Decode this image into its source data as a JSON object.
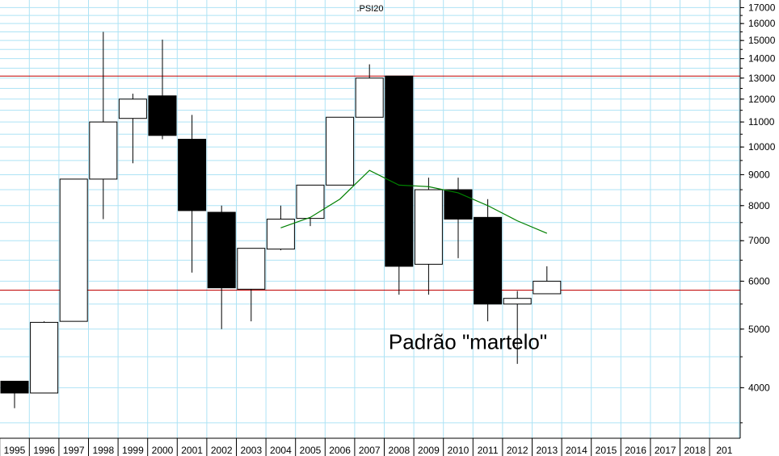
{
  "chart_data": {
    "type": "candlestick",
    "title": ".PSI20",
    "scale": "log",
    "ylim": [
      3300,
      17500
    ],
    "y_ticks": [
      4000,
      5000,
      6000,
      7000,
      8000,
      9000,
      10000,
      11000,
      12000,
      13000,
      14000,
      15000,
      16000,
      17000
    ],
    "x_labels": [
      "1995",
      "1996",
      "1997",
      "1998",
      "1999",
      "2000",
      "2001",
      "2002",
      "2003",
      "2004",
      "2005",
      "2006",
      "2007",
      "2008",
      "2009",
      "2010",
      "2011",
      "2012",
      "2013",
      "2014",
      "2015",
      "2016",
      "2017",
      "2018",
      "201"
    ],
    "grid": true,
    "candles": [
      {
        "year": "1995",
        "open": 4100,
        "close": 3920,
        "high": 4100,
        "low": 3700
      },
      {
        "year": "1996",
        "open": 3920,
        "close": 5130,
        "high": 5150,
        "low": 3920
      },
      {
        "year": "1997",
        "open": 5150,
        "close": 8850,
        "high": 8850,
        "low": 5150
      },
      {
        "year": "1998",
        "open": 8850,
        "close": 11000,
        "high": 15500,
        "low": 7600
      },
      {
        "year": "1999",
        "open": 11150,
        "close": 12000,
        "high": 12250,
        "low": 9400
      },
      {
        "year": "2000",
        "open": 12150,
        "close": 10450,
        "high": 15050,
        "low": 10300
      },
      {
        "year": "2001",
        "open": 10300,
        "close": 7850,
        "high": 11300,
        "low": 6200
      },
      {
        "year": "2002",
        "open": 7800,
        "close": 5850,
        "high": 8000,
        "low": 5000
      },
      {
        "year": "2003",
        "open": 5820,
        "close": 6800,
        "high": 6800,
        "low": 5150
      },
      {
        "year": "2004",
        "open": 6780,
        "close": 7600,
        "high": 8000,
        "low": 6750
      },
      {
        "year": "2005",
        "open": 7620,
        "close": 8650,
        "high": 8650,
        "low": 7400
      },
      {
        "year": "2006",
        "open": 8650,
        "close": 11200,
        "high": 11200,
        "low": 8650
      },
      {
        "year": "2007",
        "open": 11200,
        "close": 13000,
        "high": 13700,
        "low": 11200
      },
      {
        "year": "2008",
        "open": 13100,
        "close": 6350,
        "high": 13100,
        "low": 5700
      },
      {
        "year": "2009",
        "open": 6400,
        "close": 8500,
        "high": 8900,
        "low": 5700
      },
      {
        "year": "2010",
        "open": 8500,
        "close": 7600,
        "high": 8900,
        "low": 6550
      },
      {
        "year": "2011",
        "open": 7650,
        "close": 5500,
        "high": 8200,
        "low": 5150
      },
      {
        "year": "2012",
        "open": 5500,
        "close": 5620,
        "high": 5780,
        "low": 4380
      },
      {
        "year": "2013",
        "open": 5720,
        "close": 6000,
        "high": 6350,
        "low": 5720
      }
    ],
    "moving_average": {
      "color": "#008000",
      "points": [
        {
          "year": "2004",
          "value": 7350
        },
        {
          "year": "2005",
          "value": 7650
        },
        {
          "year": "2006",
          "value": 8200
        },
        {
          "year": "2007",
          "value": 9150
        },
        {
          "year": "2008",
          "value": 8650
        },
        {
          "year": "2009",
          "value": 8600
        },
        {
          "year": "2010",
          "value": 8400
        },
        {
          "year": "2011",
          "value": 8000
        },
        {
          "year": "2012",
          "value": 7550
        },
        {
          "year": "2013",
          "value": 7200
        }
      ]
    },
    "horizontal_lines": [
      {
        "value": 13100,
        "color": "#c00000"
      },
      {
        "value": 5800,
        "color": "#c00000"
      }
    ],
    "annotation": {
      "text": "Padrão \"martelo\"",
      "x_year": "2010",
      "y_value": 4900
    }
  }
}
